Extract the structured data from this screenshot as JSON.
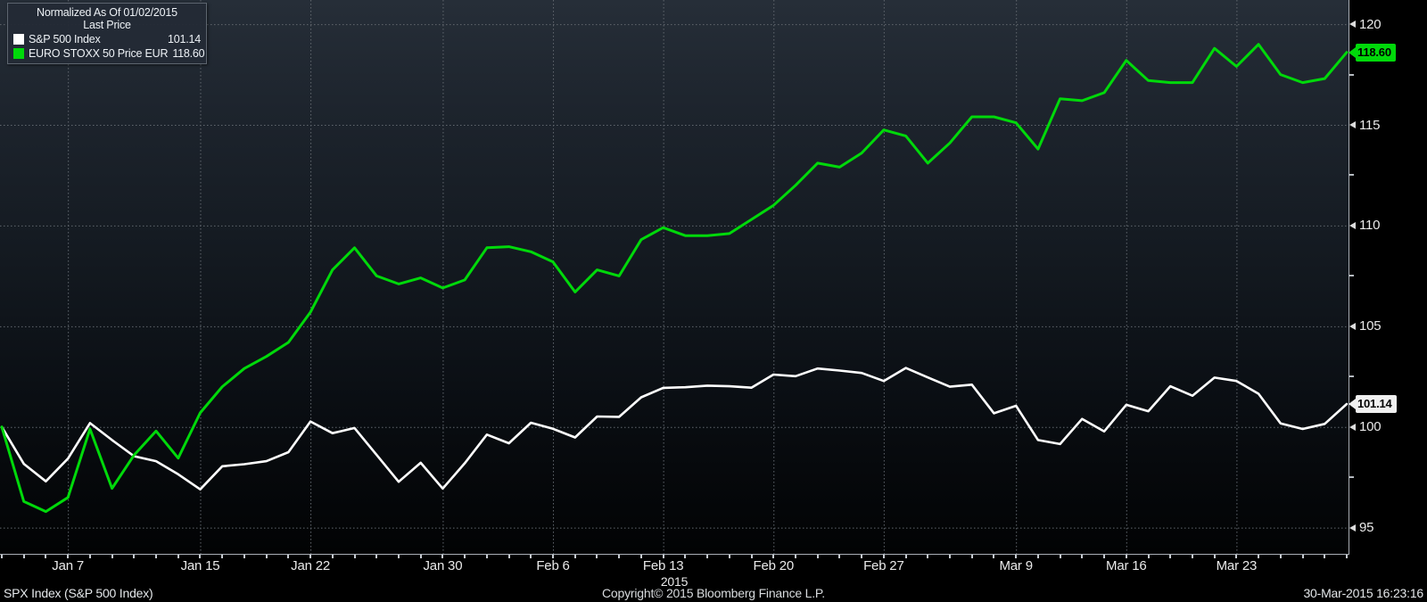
{
  "legend": {
    "title": "Normalized As Of 01/02/2015",
    "subtitle": "Last Price",
    "items": [
      {
        "name": "S&P 500 Index",
        "value": "101.14",
        "color": "#ffffff"
      },
      {
        "name": "EURO STOXX 50 Price EUR",
        "value": "118.60",
        "color": "#00d90a"
      }
    ]
  },
  "y_axis": {
    "major_ticks": [
      95,
      100,
      105,
      110,
      115,
      120
    ],
    "minor_ticks": [
      97.5,
      102.5,
      107.5,
      112.5,
      117.5
    ]
  },
  "x_axis": {
    "year": "2015",
    "ticks": [
      {
        "label": "Jan 7",
        "i": 3
      },
      {
        "label": "Jan 15",
        "i": 9
      },
      {
        "label": "Jan 22",
        "i": 14
      },
      {
        "label": "Jan 30",
        "i": 20
      },
      {
        "label": "Feb 6",
        "i": 25
      },
      {
        "label": "Feb 13",
        "i": 30
      },
      {
        "label": "Feb 20",
        "i": 35
      },
      {
        "label": "Feb 27",
        "i": 40
      },
      {
        "label": "Mar 9",
        "i": 46
      },
      {
        "label": "Mar 16",
        "i": 51
      },
      {
        "label": "Mar 23",
        "i": 56
      }
    ]
  },
  "price_labels": [
    {
      "value": "118.60",
      "numeric": 118.6,
      "color": "#00d90a",
      "series": "EURO STOXX 50 Price EUR"
    },
    {
      "value": "101.14",
      "numeric": 101.14,
      "color": "#f0f0f0",
      "series": "S&P 500 Index"
    }
  ],
  "footer": {
    "left": "SPX Index (S&P 500 Index)",
    "center": "Copyright© 2015 Bloomberg Finance L.P.",
    "right": "30-Mar-2015 16:23:16"
  },
  "chart_data": {
    "type": "line",
    "title": "Normalized As Of 01/02/2015 - Last Price",
    "x": [
      "01/02",
      "01/05",
      "01/06",
      "01/07",
      "01/08",
      "01/09",
      "01/12",
      "01/13",
      "01/14",
      "01/15",
      "01/16",
      "01/19",
      "01/20",
      "01/21",
      "01/22",
      "01/23",
      "01/26",
      "01/27",
      "01/28",
      "01/29",
      "01/30",
      "02/02",
      "02/03",
      "02/04",
      "02/05",
      "02/06",
      "02/09",
      "02/10",
      "02/11",
      "02/12",
      "02/13",
      "02/16",
      "02/17",
      "02/18",
      "02/19",
      "02/20",
      "02/23",
      "02/24",
      "02/25",
      "02/26",
      "02/27",
      "03/02",
      "03/03",
      "03/04",
      "03/05",
      "03/06",
      "03/09",
      "03/10",
      "03/11",
      "03/12",
      "03/13",
      "03/16",
      "03/17",
      "03/18",
      "03/19",
      "03/20",
      "03/23",
      "03/24",
      "03/25",
      "03/26",
      "03/27",
      "03/30"
    ],
    "series": [
      {
        "name": "S&P 500 Index",
        "color": "#ffffff",
        "last_value": 101.14,
        "values": [
          100.0,
          98.17,
          97.3,
          98.43,
          100.19,
          99.35,
          98.55,
          98.3,
          97.65,
          96.9,
          98.05,
          98.15,
          98.3,
          98.75,
          100.27,
          99.69,
          99.95,
          98.61,
          97.28,
          98.22,
          96.94,
          98.2,
          99.62,
          99.19,
          100.21,
          99.91,
          99.48,
          100.52,
          100.5,
          101.47,
          101.94,
          101.97,
          102.05,
          102.02,
          101.95,
          102.6,
          102.52,
          102.9,
          102.8,
          102.68,
          102.28,
          102.93,
          102.46,
          102.0,
          102.1,
          100.68,
          101.05,
          99.35,
          99.15,
          100.4,
          99.78,
          101.1,
          100.78,
          102.02,
          101.55,
          102.45,
          102.28,
          101.65,
          100.18,
          99.9,
          100.15,
          101.14
        ]
      },
      {
        "name": "EURO STOXX 50 Price EUR",
        "color": "#00d90a",
        "last_value": 118.6,
        "values": [
          100.0,
          96.3,
          95.8,
          96.5,
          99.9,
          96.95,
          98.6,
          99.8,
          98.45,
          100.7,
          102.0,
          102.9,
          103.5,
          104.2,
          105.7,
          107.8,
          108.9,
          107.5,
          107.1,
          107.4,
          106.9,
          107.3,
          108.9,
          108.95,
          108.7,
          108.2,
          106.7,
          107.8,
          107.5,
          109.3,
          109.9,
          109.5,
          109.5,
          109.6,
          110.3,
          111.0,
          112.0,
          113.1,
          112.9,
          113.6,
          114.75,
          114.45,
          113.1,
          114.1,
          115.4,
          115.4,
          115.1,
          113.8,
          116.3,
          116.2,
          116.6,
          118.2,
          117.2,
          117.1,
          117.1,
          118.8,
          117.9,
          119.0,
          117.5,
          117.1,
          117.3,
          118.6
        ]
      }
    ],
    "ylim": [
      93.7,
      121.2
    ],
    "xlabel": "2015",
    "ylabel": "",
    "grid": "dotted",
    "legend_position": "top-left",
    "normalized_base_date": "01/02/2015"
  }
}
